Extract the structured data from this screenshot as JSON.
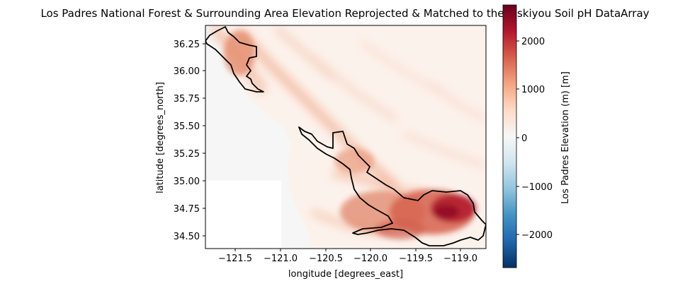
{
  "figure": {
    "title": "Los Padres National Forest & Surrounding Area Elevation Reprojected & Matched to the Siskiyou Soil pH DataArray",
    "xlabel": "longitude [degrees_east]",
    "ylabel": "latitude [degrees_north]",
    "x_ticks": [
      "−121.5",
      "−121.0",
      "−120.5",
      "−120.0",
      "−119.5",
      "−119.0"
    ],
    "y_ticks": [
      "36.25",
      "36.00",
      "35.75",
      "35.50",
      "35.25",
      "35.00",
      "34.75",
      "34.50"
    ],
    "colorbar": {
      "label": "Los Padres Elevation (m) [m]",
      "ticks": [
        "2000",
        "1000",
        "0",
        "−1000",
        "−2000"
      ],
      "colormap": "RdBu_r",
      "vmin": -2600,
      "vmax": 2600
    },
    "boundary_color": "#000000"
  },
  "chart_data": {
    "type": "heatmap",
    "title": "Los Padres National Forest & Surrounding Area Elevation Reprojected & Matched to the Siskiyou Soil pH DataArray",
    "xlabel": "longitude [degrees_east]",
    "ylabel": "latitude [degrees_north]",
    "xlim": [
      -121.84,
      -118.73
    ],
    "ylim": [
      34.4,
      36.42
    ],
    "x_ticks": [
      -121.5,
      -121.0,
      -120.5,
      -120.0,
      -119.5,
      -119.0
    ],
    "y_ticks": [
      36.25,
      36.0,
      35.75,
      35.5,
      35.25,
      35.0,
      34.75,
      34.5
    ],
    "colorbar_label": "Los Padres Elevation (m) [m]",
    "colorbar_ticks": [
      2000,
      1000,
      0,
      -1000,
      -2000
    ],
    "colorbar_range": [
      -2600,
      2600
    ],
    "colormap": "RdBu_r",
    "nodata_region": {
      "lon": [
        -121.84,
        -121.0
      ],
      "lat": [
        34.4,
        35.0
      ]
    },
    "ocean_value_m": 0,
    "max_elevation_area": {
      "lon": -119.15,
      "lat": 34.75
    }
  }
}
